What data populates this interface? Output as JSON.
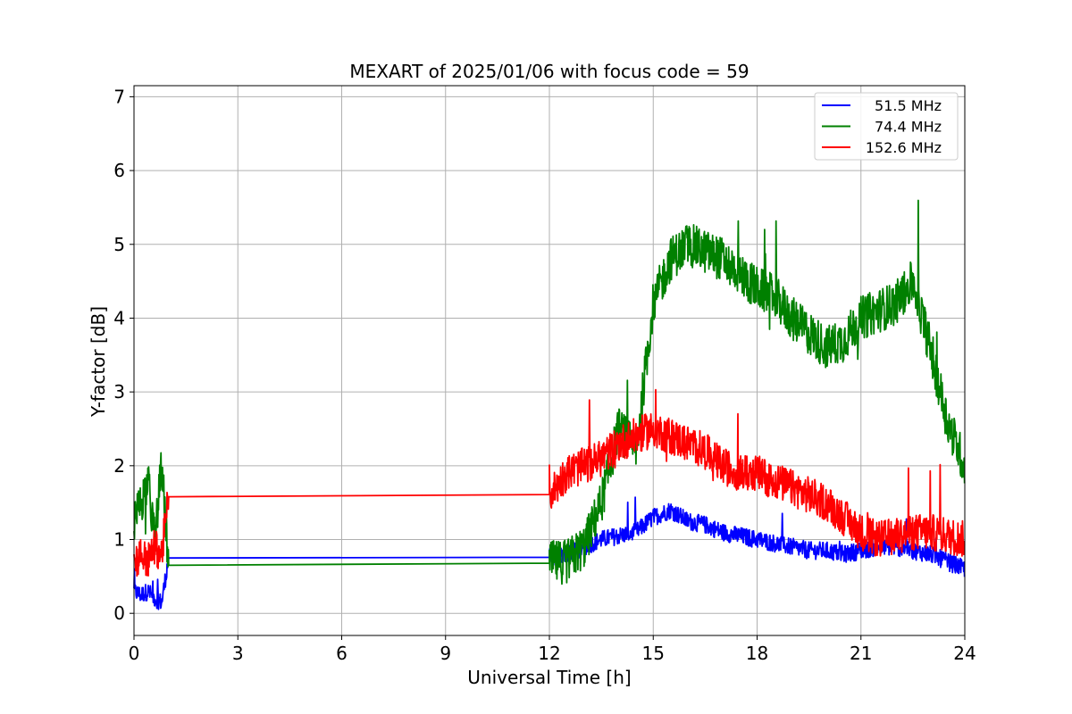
{
  "chart_data": {
    "type": "line",
    "title": "MEXART of 2025/01/06 with focus code = 59",
    "xlabel": "Universal Time [h]",
    "ylabel": "Y-factor [dB]",
    "xlim": [
      0,
      24
    ],
    "ylim": [
      -0.3,
      7.15
    ],
    "xticks": [
      0,
      3,
      6,
      9,
      12,
      15,
      18,
      21,
      24
    ],
    "yticks": [
      0,
      1,
      2,
      3,
      4,
      5,
      6,
      7
    ],
    "grid": true,
    "legend_position": "top-right",
    "series": [
      {
        "name": "51.5 MHz",
        "color": "#0000ff",
        "x": [
          0,
          0.2,
          0.4,
          0.6,
          0.8,
          1.0,
          12.0,
          12.5,
          13.0,
          13.5,
          14.0,
          14.5,
          15.0,
          15.5,
          16.0,
          16.5,
          17.0,
          17.5,
          18.0,
          18.5,
          19.0,
          19.5,
          20.0,
          20.5,
          21.0,
          21.5,
          22.0,
          22.5,
          23.0,
          23.5,
          24.0
        ],
        "y": [
          0.3,
          0.25,
          0.3,
          0.2,
          0.15,
          0.75,
          0.76,
          0.8,
          0.9,
          1.0,
          1.05,
          1.1,
          1.3,
          1.4,
          1.25,
          1.2,
          1.1,
          1.05,
          1.0,
          0.95,
          0.9,
          0.85,
          0.85,
          0.8,
          0.85,
          0.9,
          0.9,
          0.85,
          0.8,
          0.7,
          0.6
        ],
        "noise": 0.12
      },
      {
        "name": "74.4 MHz",
        "color": "#008000",
        "x": [
          0,
          0.2,
          0.4,
          0.6,
          0.8,
          1.0,
          12.0,
          12.5,
          13.0,
          13.5,
          14.0,
          14.5,
          15.0,
          15.5,
          16.0,
          16.5,
          17.0,
          17.5,
          18.0,
          18.5,
          19.0,
          19.5,
          20.0,
          20.5,
          21.0,
          21.5,
          22.0,
          22.5,
          23.0,
          23.5,
          24.0
        ],
        "y": [
          1.2,
          1.5,
          1.8,
          1.0,
          2.0,
          0.65,
          0.68,
          0.7,
          0.9,
          1.5,
          2.5,
          2.2,
          4.2,
          4.8,
          5.0,
          4.9,
          4.8,
          4.6,
          4.4,
          4.3,
          4.0,
          3.8,
          3.6,
          3.7,
          4.0,
          4.1,
          4.2,
          4.5,
          3.6,
          2.6,
          2.0
        ],
        "noise": 0.3
      },
      {
        "name": "152.6 MHz",
        "color": "#ff0000",
        "x": [
          0,
          0.2,
          0.4,
          0.6,
          0.8,
          1.0,
          12.0,
          12.5,
          13.0,
          13.5,
          14.0,
          14.5,
          15.0,
          15.5,
          16.0,
          16.5,
          17.0,
          17.5,
          18.0,
          18.5,
          19.0,
          19.5,
          20.0,
          20.5,
          21.0,
          21.5,
          22.0,
          22.5,
          23.0,
          23.5,
          24.0
        ],
        "y": [
          0.7,
          0.8,
          0.7,
          0.9,
          0.8,
          1.58,
          1.61,
          1.9,
          2.0,
          2.1,
          2.3,
          2.4,
          2.5,
          2.4,
          2.3,
          2.2,
          2.0,
          1.9,
          1.9,
          1.8,
          1.7,
          1.6,
          1.5,
          1.3,
          1.1,
          1.0,
          1.05,
          1.1,
          1.1,
          1.05,
          1.0
        ],
        "noise": 0.25
      }
    ]
  }
}
